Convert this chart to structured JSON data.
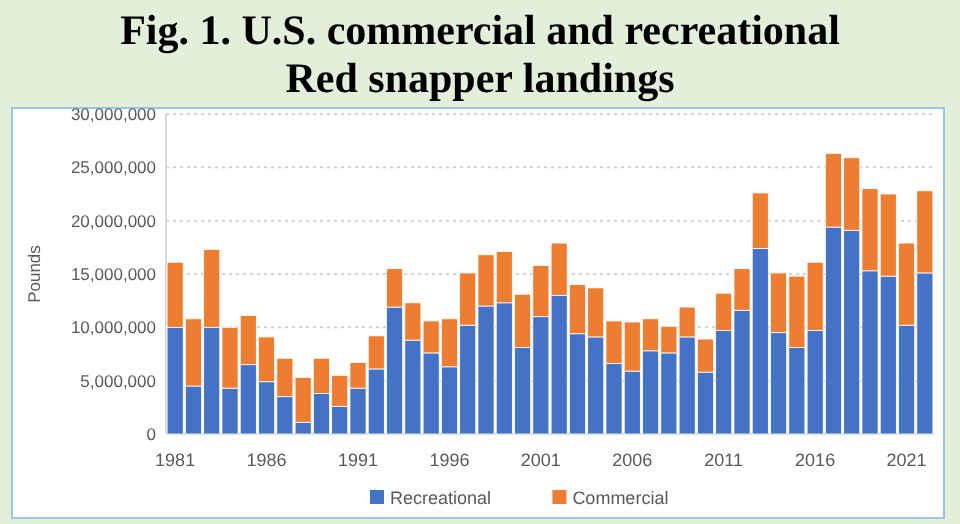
{
  "chart_data": {
    "type": "bar",
    "stacked": true,
    "title": "Fig. 1. U.S. commercial and recreational Red snapper landings",
    "ylabel": "Pounds",
    "categories": [
      "1981",
      null,
      null,
      null,
      null,
      "1986",
      null,
      null,
      null,
      null,
      "1991",
      null,
      null,
      null,
      null,
      "1996",
      null,
      null,
      null,
      null,
      "2001",
      null,
      null,
      null,
      null,
      "2006",
      null,
      null,
      null,
      null,
      "2011",
      null,
      null,
      null,
      null,
      "2016",
      null,
      null,
      null,
      null,
      "2021",
      null
    ],
    "series": [
      {
        "name": "Recreational",
        "color": "#4472c4",
        "values": [
          10000000,
          4500000,
          10000000,
          4300000,
          6500000,
          4900000,
          3500000,
          1100000,
          3800000,
          2600000,
          4300000,
          6100000,
          11900000,
          8800000,
          7600000,
          6300000,
          10200000,
          12000000,
          12300000,
          8100000,
          11000000,
          13000000,
          9400000,
          9100000,
          6600000,
          5900000,
          7800000,
          7600000,
          9100000,
          5800000,
          9700000,
          11600000,
          17400000,
          9500000,
          8100000,
          9700000,
          19400000,
          19100000,
          15300000,
          14800000,
          10200000,
          15100000
        ]
      },
      {
        "name": "Commercial",
        "color": "#ed7d31",
        "values": [
          6100000,
          6300000,
          7300000,
          5700000,
          4600000,
          4200000,
          3600000,
          4200000,
          3300000,
          2900000,
          2400000,
          3100000,
          3600000,
          3500000,
          3000000,
          4500000,
          4900000,
          4800000,
          4800000,
          5000000,
          4800000,
          4900000,
          4600000,
          4600000,
          4000000,
          4600000,
          3000000,
          2500000,
          2800000,
          3100000,
          3500000,
          3900000,
          5200000,
          5600000,
          6700000,
          6400000,
          6900000,
          6800000,
          7700000,
          7700000,
          7700000,
          7700000
        ]
      }
    ],
    "ylim": [
      0,
      30000000
    ],
    "yticks": [
      {
        "value": 0,
        "label": "0"
      },
      {
        "value": 5000000,
        "label": "5,000,000"
      },
      {
        "value": 10000000,
        "label": "10,000,000"
      },
      {
        "value": 15000000,
        "label": "15,000,000"
      },
      {
        "value": 20000000,
        "label": "20,000,000"
      },
      {
        "value": 25000000,
        "label": "25,000,000"
      },
      {
        "value": 30000000,
        "label": "30,000,000"
      }
    ],
    "grid": "y",
    "legend": "bottom"
  }
}
